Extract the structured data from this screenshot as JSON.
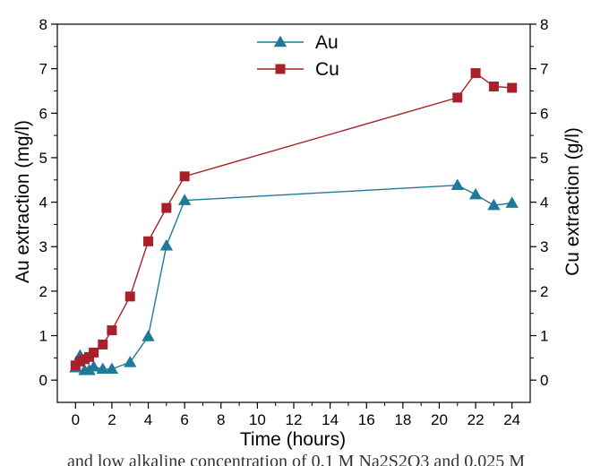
{
  "chart_data": {
    "type": "line",
    "xlabel": "Time (hours)",
    "ylabel": "Au extraction (mg/l)",
    "y2label": "Cu extraction (g/l)",
    "xlim": [
      -1,
      25
    ],
    "ylim": [
      -0.5,
      8
    ],
    "y2lim": [
      -0.5,
      8
    ],
    "xticks": [
      "0",
      "2",
      "4",
      "6",
      "8",
      "10",
      "12",
      "14",
      "16",
      "18",
      "20",
      "22",
      "24"
    ],
    "yticks": [
      "0",
      "1",
      "2",
      "3",
      "4",
      "5",
      "6",
      "7",
      "8"
    ],
    "y2ticks": [
      "0",
      "1",
      "2",
      "3",
      "4",
      "5",
      "6",
      "7",
      "8"
    ],
    "legend_position": "top-center",
    "grid": false,
    "series": [
      {
        "name": "Au",
        "axis": "left",
        "color": "#1f7a99",
        "marker": "triangle",
        "points": [
          [
            0,
            0.28
          ],
          [
            0.25,
            0.55
          ],
          [
            0.5,
            0.22
          ],
          [
            0.75,
            0.22
          ],
          [
            1,
            0.3
          ],
          [
            1.5,
            0.25
          ],
          [
            2,
            0.25
          ],
          [
            3,
            0.4
          ],
          [
            4,
            0.98
          ],
          [
            5,
            3.02
          ],
          [
            6,
            4.04
          ],
          [
            21,
            4.38
          ],
          [
            22,
            4.17
          ],
          [
            23,
            3.93
          ],
          [
            24,
            3.98
          ]
        ]
      },
      {
        "name": "Cu",
        "axis": "right",
        "color": "#a8202a",
        "marker": "square",
        "points": [
          [
            0,
            0.33
          ],
          [
            0.25,
            0.42
          ],
          [
            0.5,
            0.47
          ],
          [
            0.75,
            0.52
          ],
          [
            1,
            0.62
          ],
          [
            1.5,
            0.8
          ],
          [
            2,
            1.12
          ],
          [
            3,
            1.88
          ],
          [
            4,
            3.12
          ],
          [
            5,
            3.87
          ],
          [
            6,
            4.58
          ],
          [
            21,
            6.35
          ],
          [
            22,
            6.9
          ],
          [
            23,
            6.6
          ],
          [
            24,
            6.57
          ]
        ]
      }
    ]
  },
  "caption": "and low alkaline concentration of 0.1 M Na2S2O3 and 0.025 M"
}
